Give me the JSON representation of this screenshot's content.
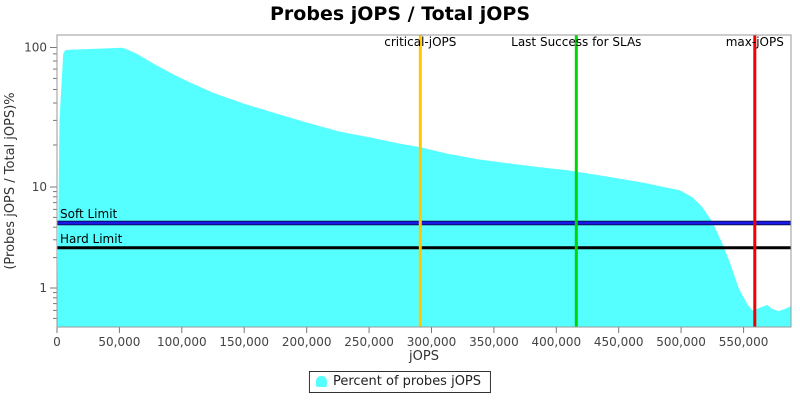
{
  "title": "Probes jOPS / Total jOPS",
  "legend": {
    "label": "Percent of probes jOPS",
    "marker_color": "#55FFFF"
  },
  "x_axis": {
    "label": "jOPS",
    "tick_values": [
      0,
      50000,
      100000,
      150000,
      200000,
      250000,
      300000,
      350000,
      400000,
      450000,
      500000,
      550000
    ],
    "tick_labels": [
      "0",
      "50,000",
      "100,000",
      "150,000",
      "200,000",
      "250,000",
      "300,000",
      "350,000",
      "400,000",
      "450,000",
      "500,000",
      "550,000"
    ]
  },
  "y_axis": {
    "label": "(Probes jOPS / Total jOPS)%",
    "major_ticks": [
      100,
      10,
      1
    ],
    "major_tick_labels": [
      "100",
      "10",
      "1"
    ],
    "minor_ticks": [
      90,
      80,
      70,
      60,
      50,
      40,
      30,
      20,
      9,
      8,
      7,
      6,
      5,
      4,
      3,
      2,
      0.9,
      0.8,
      0.7,
      0.6,
      0.5,
      0.4
    ]
  },
  "markers": {
    "vertical": [
      {
        "name": "critical-jops",
        "label": "critical-jOPS",
        "x": 291000,
        "color": "#FFC800"
      },
      {
        "name": "last-success-for-slas",
        "label": "Last Success for SLAs",
        "x": 416000,
        "color": "#00D600"
      },
      {
        "name": "max-jops",
        "label": "max-jOPS",
        "x": 559000,
        "color": "#F00000"
      }
    ],
    "horizontal": [
      {
        "name": "soft-limit",
        "label": "Soft Limit",
        "y_percent": 4.4,
        "color": "#1A1AE6",
        "edge_color": "#000028"
      },
      {
        "name": "hard-limit",
        "label": "Hard Limit",
        "y_percent": 2.5,
        "color": "#000000",
        "edge_color": ""
      }
    ]
  },
  "chart_data": {
    "type": "area",
    "title": "Probes jOPS / Total jOPS",
    "xlabel": "jOPS",
    "ylabel": "(Probes jOPS / Total jOPS)%",
    "x_scale": "linear",
    "y_scale": "log",
    "xlim": [
      0,
      588000
    ],
    "ylim_percent": [
      0.4,
      100
    ],
    "grid": false,
    "legend_position": "bottom",
    "annotations": [
      "critical-jOPS",
      "Last Success for SLAs",
      "max-jOPS",
      "Soft Limit",
      "Hard Limit"
    ],
    "series": [
      {
        "name": "Percent of probes jOPS",
        "color": "#55FFFF",
        "points": [
          [
            0,
            0.4
          ],
          [
            2000,
            30
          ],
          [
            5000,
            90
          ],
          [
            6500,
            95.5
          ],
          [
            10000,
            96.5
          ],
          [
            26000,
            97.5
          ],
          [
            40000,
            98.5
          ],
          [
            52000,
            99.5
          ],
          [
            56000,
            97
          ],
          [
            64000,
            90
          ],
          [
            78000,
            76
          ],
          [
            92000,
            65
          ],
          [
            105000,
            57
          ],
          [
            126000,
            47
          ],
          [
            150000,
            39.5
          ],
          [
            174000,
            34
          ],
          [
            200000,
            29
          ],
          [
            226000,
            25
          ],
          [
            250000,
            22.7
          ],
          [
            274000,
            20.5
          ],
          [
            291000,
            19.3
          ],
          [
            313000,
            17.3
          ],
          [
            337000,
            15.8
          ],
          [
            361000,
            14.8
          ],
          [
            385000,
            13.9
          ],
          [
            409000,
            13.2
          ],
          [
            433000,
            12.2
          ],
          [
            453000,
            11.4
          ],
          [
            473000,
            10.6
          ],
          [
            486000,
            10.0
          ],
          [
            499000,
            9.3
          ],
          [
            509000,
            7.9
          ],
          [
            517000,
            6.3
          ],
          [
            525000,
            4.5
          ],
          [
            533000,
            2.75
          ],
          [
            539000,
            1.8
          ],
          [
            546000,
            1.0
          ],
          [
            553000,
            0.69
          ],
          [
            557000,
            0.6
          ],
          [
            562000,
            0.63
          ],
          [
            569000,
            0.68
          ],
          [
            573000,
            0.62
          ],
          [
            578000,
            0.59
          ],
          [
            583000,
            0.62
          ],
          [
            588000,
            0.66
          ]
        ]
      }
    ]
  }
}
